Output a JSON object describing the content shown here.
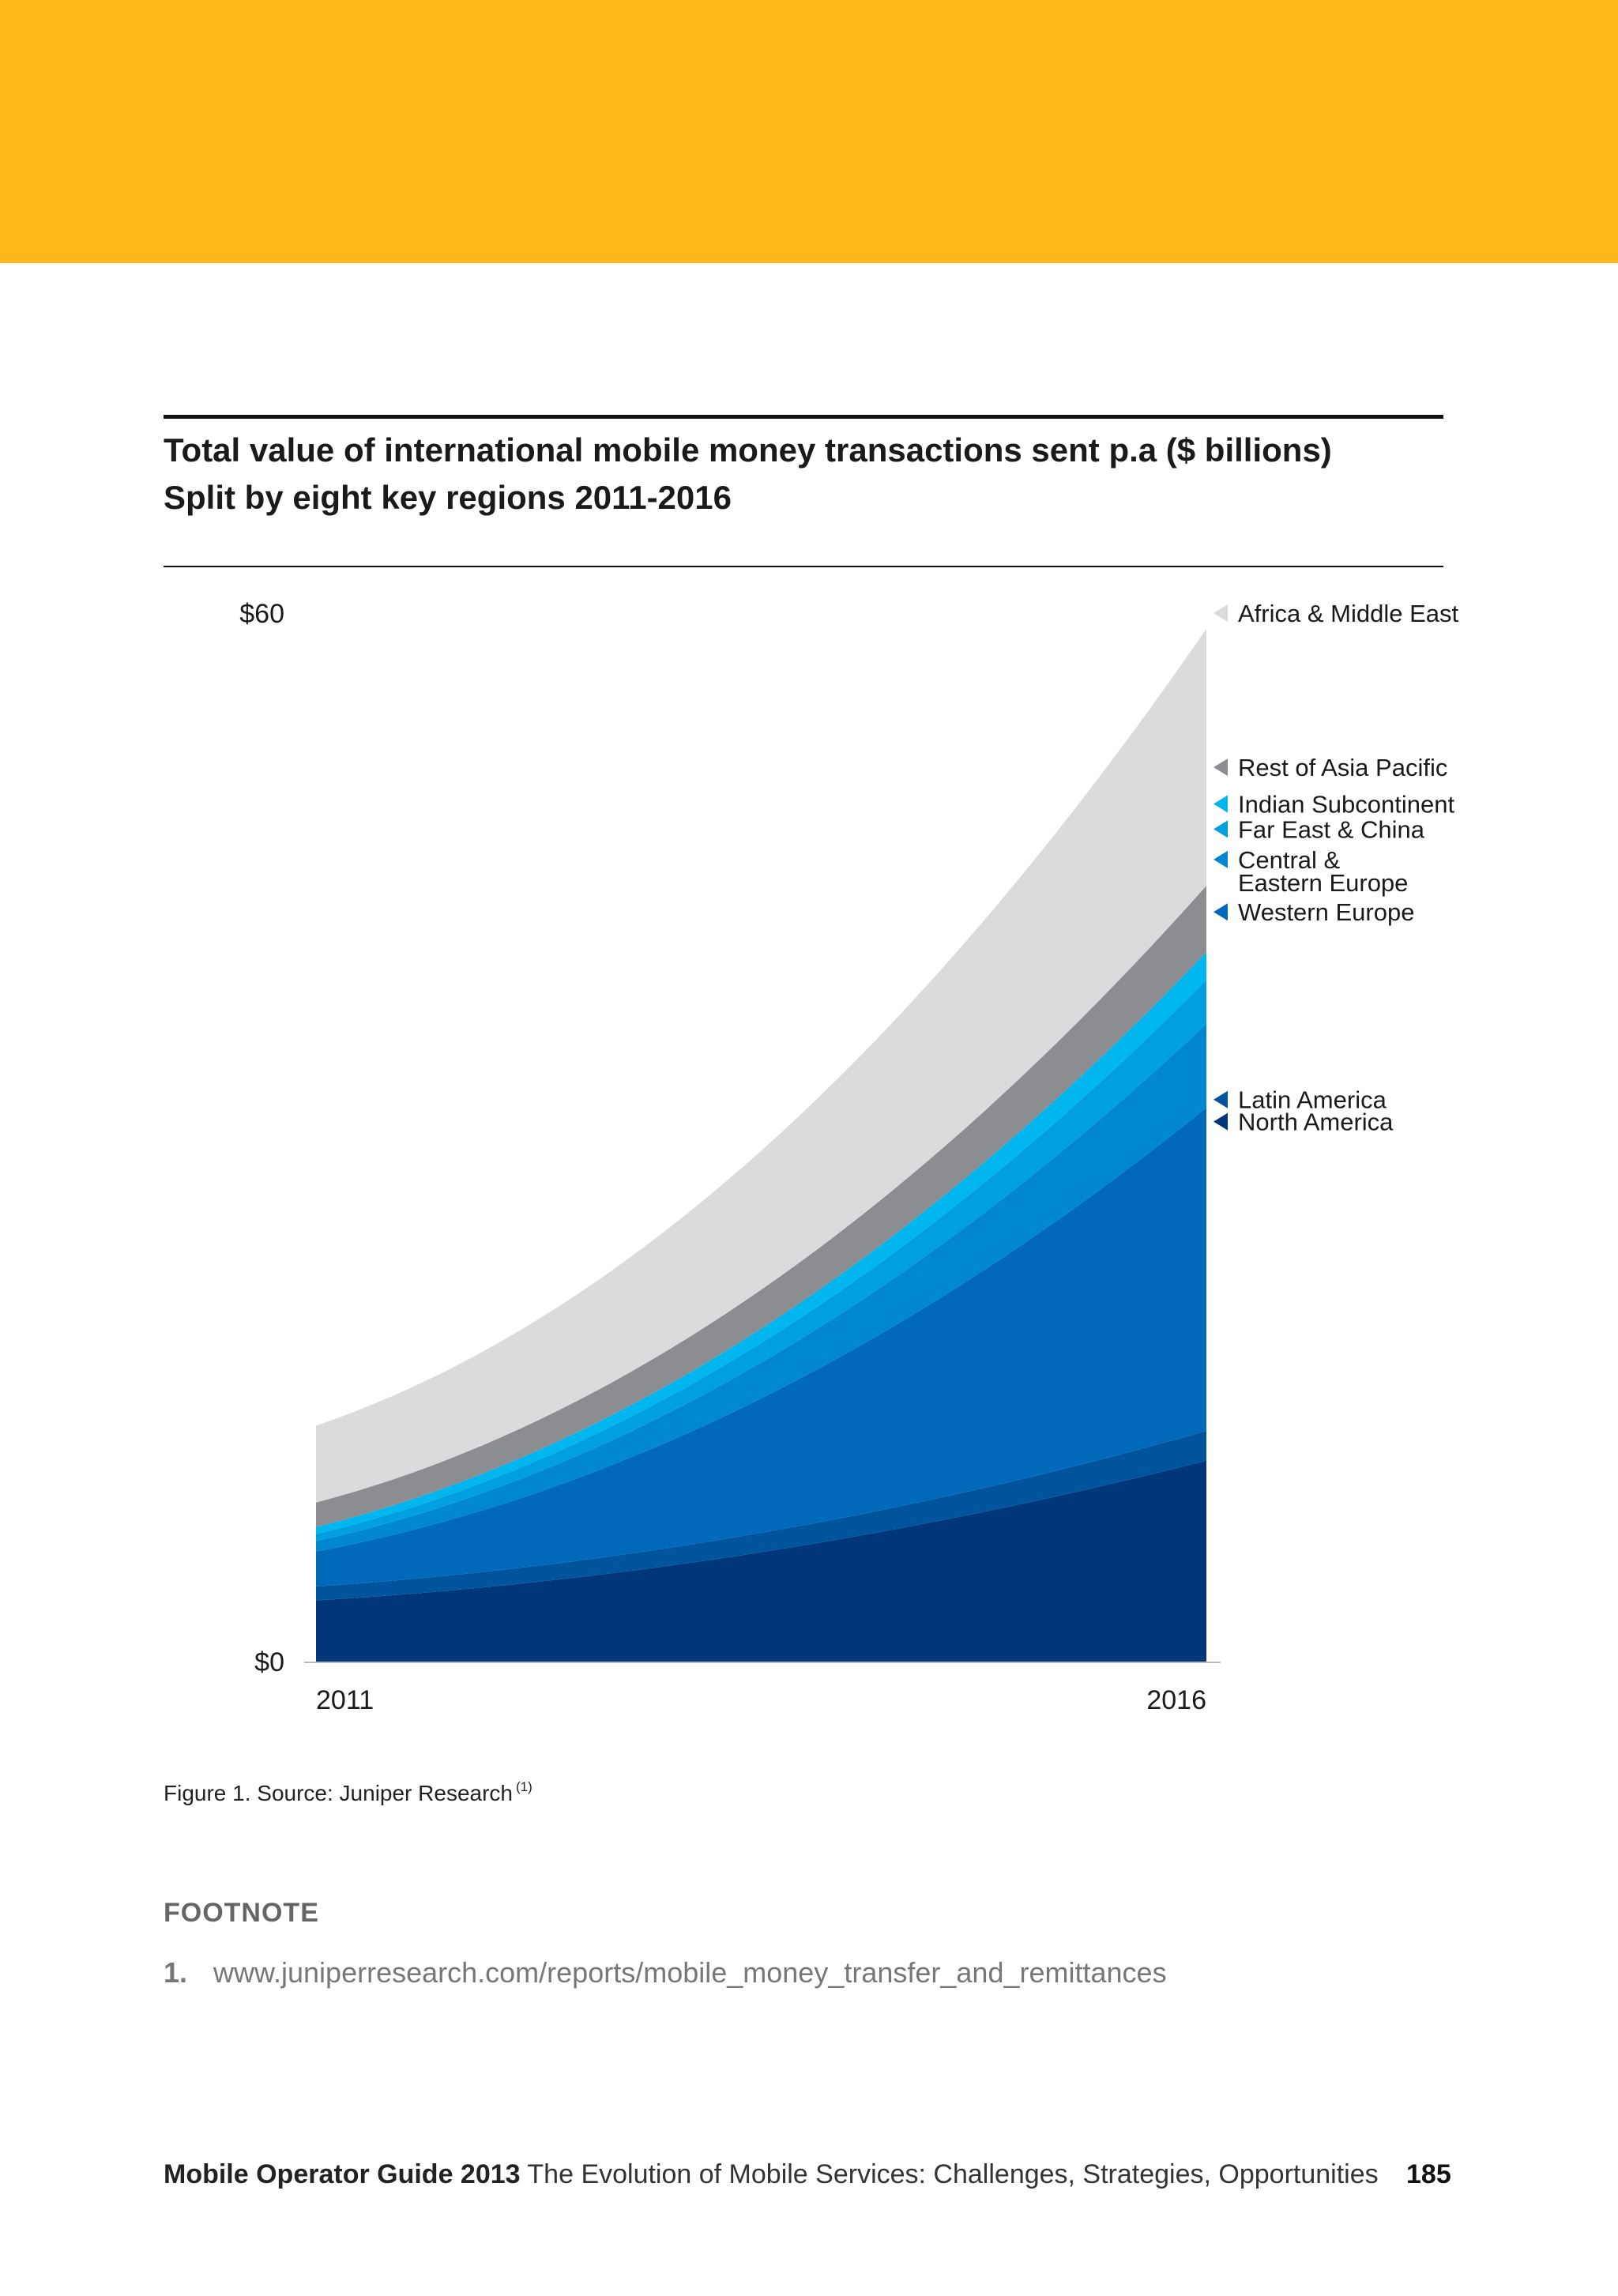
{
  "colors": {
    "banner": "#FEB819"
  },
  "title": {
    "line1": "Total value of international mobile money transactions sent p.a ($ billions)",
    "line2": "Split by eight key regions 2011-2016"
  },
  "chart_data": {
    "type": "area",
    "stacked": true,
    "x": [
      2011,
      2016
    ],
    "xlabels": [
      "2011",
      "2016"
    ],
    "ylim": [
      0,
      60
    ],
    "ytick_labels": [
      "$60",
      "$0"
    ],
    "series": [
      {
        "name": "North America",
        "color": "#00367A",
        "values": [
          3.5,
          11.5
        ],
        "label_y": 51.5
      },
      {
        "name": "Latin America",
        "color": "#00549C",
        "values": [
          0.8,
          1.7
        ],
        "label_y": 53.6
      },
      {
        "name": "Western Europe",
        "color": "#0069BA",
        "values": [
          2.0,
          18.5
        ],
        "label_y": 71.5
      },
      {
        "name": "Central & Eastern Europe",
        "color": "#0087CF",
        "values": [
          0.6,
          4.8
        ],
        "label_y": 76.5
      },
      {
        "name": "Far East & China",
        "color": "#009FE0",
        "values": [
          0.4,
          2.5
        ],
        "label_y": 79.4
      },
      {
        "name": "Indian Subcontinent",
        "color": "#00B6EE",
        "values": [
          0.4,
          1.6
        ],
        "label_y": 81.8
      },
      {
        "name": "Rest of Asia Pacific",
        "color": "#8C8D90",
        "values": [
          1.4,
          3.8
        ],
        "label_y": 85.3
      },
      {
        "name": "Africa & Middle East",
        "color": "#D9DBDD",
        "values": [
          4.4,
          14.7
        ],
        "label_y": 100.0
      }
    ],
    "legend": "right"
  },
  "caption": {
    "text": "Figure 1. Source: Juniper Research",
    "sup": "(1)"
  },
  "footnote": {
    "heading": "FOOTNOTE",
    "number": "1.",
    "text": "www.juniperresearch.com/reports/mobile_money_transfer_and_remittances"
  },
  "footer": {
    "bold": "Mobile Operator Guide 2013",
    "rest": "The Evolution of Mobile Services: Challenges, Strategies, Opportunities",
    "page": "185"
  }
}
